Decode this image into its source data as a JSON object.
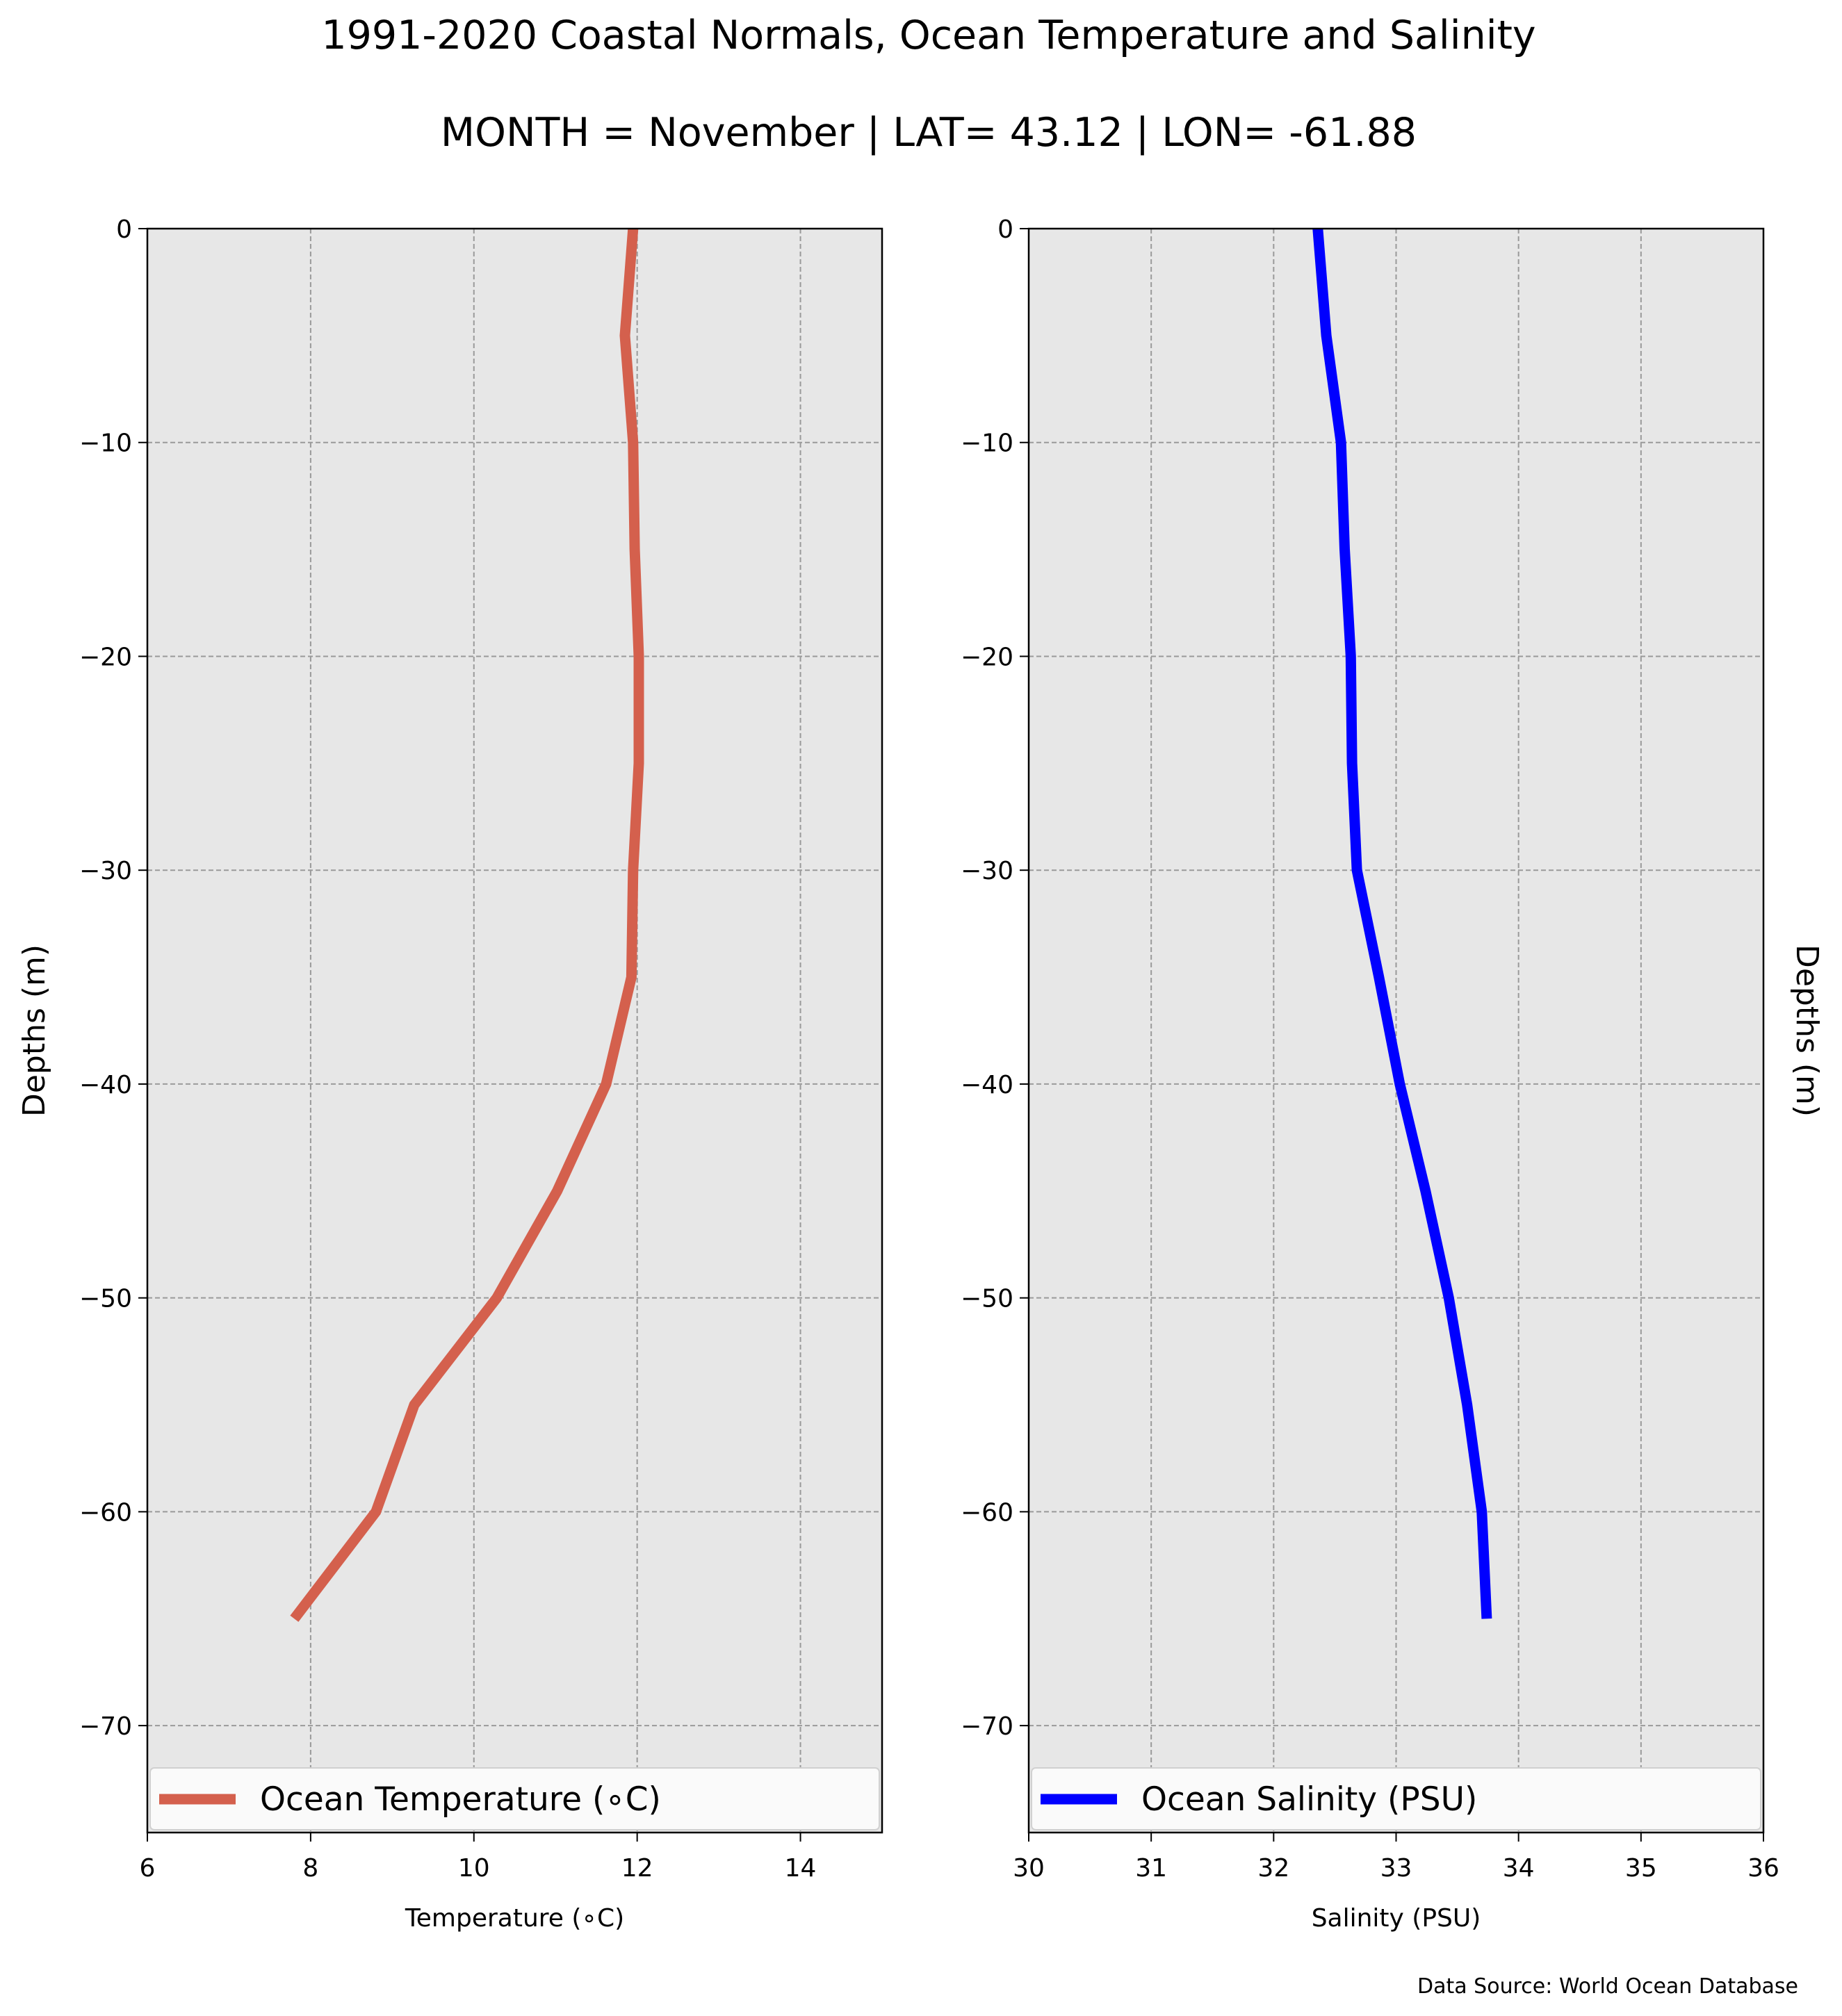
{
  "figure": {
    "title": "1991-2020 Coastal Normals, Ocean Temperature and Salinity",
    "subtitle": "MONTH = November | LAT= 43.12 | LON= -61.88",
    "source_note": "Data Source: World Ocean Database"
  },
  "chart_data": [
    {
      "type": "line",
      "orientation": "vertical-profile",
      "xlabel": "Temperature ($^\\circ$C)",
      "xlabel_display": "Temperature (∘C)",
      "ylabel": "Depths (m)",
      "xlim": [
        6,
        15
      ],
      "ylim": [
        -75,
        0
      ],
      "xticks": [
        6,
        8,
        10,
        12,
        14
      ],
      "yticks": [
        0,
        -10,
        -20,
        -30,
        -40,
        -50,
        -60,
        -70
      ],
      "grid": true,
      "background": "#e7e7e7",
      "legend_position": "bottom",
      "series": [
        {
          "name": "Ocean Temperature ($^\\circ$C)",
          "label": "Ocean Temperature (∘C)",
          "color": "#d4604d",
          "x": [
            11.95,
            11.85,
            11.95,
            11.97,
            12.02,
            12.02,
            11.95,
            11.93,
            11.62,
            11.02,
            10.28,
            9.27,
            8.8,
            7.8
          ],
          "y": [
            0,
            -5,
            -10,
            -15,
            -20,
            -25,
            -30,
            -35,
            -40,
            -45,
            -50,
            -55,
            -60,
            -65
          ]
        }
      ]
    },
    {
      "type": "line",
      "orientation": "vertical-profile",
      "xlabel": "Salinity (PSU)",
      "ylabel": "Depths (m)",
      "xlim": [
        30,
        36
      ],
      "ylim": [
        -75,
        0
      ],
      "xticks": [
        30,
        31,
        32,
        33,
        34,
        35,
        36
      ],
      "yticks": [
        0,
        -10,
        -20,
        -30,
        -40,
        -50,
        -60,
        -70
      ],
      "grid": true,
      "background": "#e7e7e7",
      "legend_position": "bottom",
      "series": [
        {
          "name": "Ocean Salinity (PSU)",
          "color": "#0000ff",
          "x": [
            32.36,
            32.43,
            32.55,
            32.58,
            32.63,
            32.64,
            32.68,
            32.86,
            33.03,
            33.24,
            33.43,
            33.58,
            33.7,
            33.74
          ],
          "y": [
            0,
            -5,
            -10,
            -15,
            -20,
            -25,
            -30,
            -35,
            -40,
            -45,
            -50,
            -55,
            -60,
            -65
          ]
        }
      ]
    }
  ]
}
